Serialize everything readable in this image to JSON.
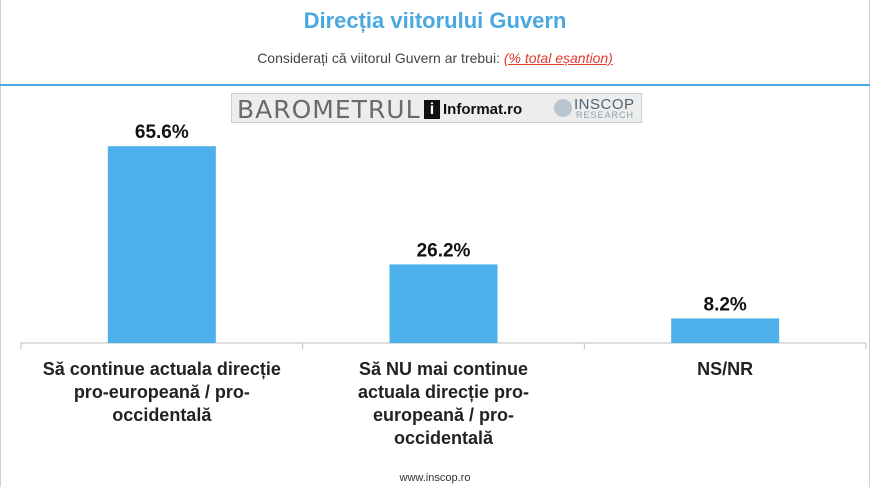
{
  "header": {
    "title": "Direcția viitorului Guvern",
    "subtitle": "Considerați că viitorul Guvern ar trebui:",
    "subtitle_note": "(% total eșantion)"
  },
  "logo": {
    "barometer": "BAROMETRUL",
    "informat": "Informat",
    "informat_suffix": ".ro",
    "inscop": "INSCOP",
    "inscop_sub": "RESEARCH"
  },
  "chart_data": {
    "type": "bar",
    "title": "Direcția viitorului Guvern",
    "categories": [
      "Să continue actuala direcție pro-europeană / pro-occidentală",
      "Să NU mai continue actuala direcție pro-europeană / pro-occidentală",
      "NS/NR"
    ],
    "values": [
      65.6,
      26.2,
      8.2
    ],
    "data_labels": [
      "65.6%",
      "26.2%",
      "8.2%"
    ],
    "unit": "%",
    "ylim": [
      0,
      70
    ],
    "grid": false,
    "legend": "none",
    "bar_color": "#4db0ea"
  },
  "footer": {
    "url": "www.inscop.ro"
  }
}
